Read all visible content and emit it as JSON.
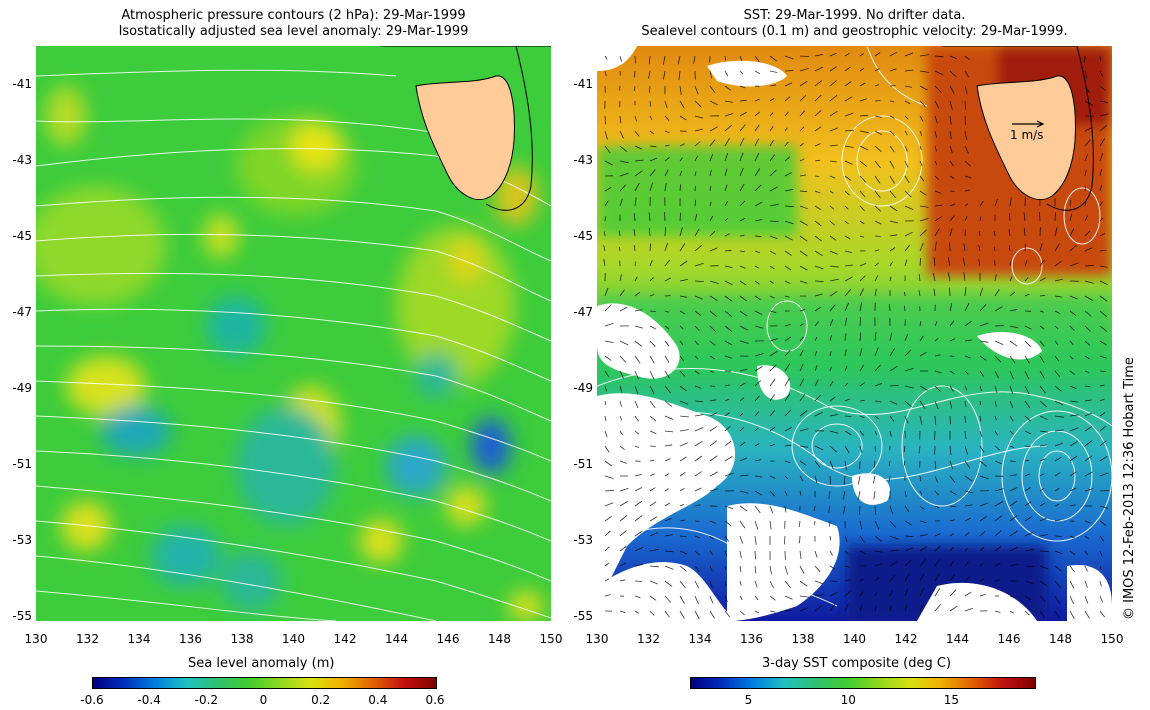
{
  "left_map": {
    "title_line1": "Atmospheric pressure contours (2 hPa): 29-Mar-1999",
    "title_line2": "Isostatically adjusted sea level anomaly: 29-Mar-1999",
    "colorbar_label": "Sea level anomaly (m)",
    "colorbar_ticks": [
      "-0.6",
      "-0.4",
      "-0.2",
      "0",
      "0.2",
      "0.4",
      "0.6"
    ],
    "colors": {
      "ocean": "#2ecc2e",
      "land": "#ffcc99",
      "contour": "#ffffff"
    }
  },
  "right_map": {
    "title_line1": "SST: 29-Mar-1999. No drifter data.",
    "title_line2": "Sealevel contours (0.1 m) and geostrophic velocity: 29-Mar-1999.",
    "velocity_scale_label": "1 m/s",
    "colorbar_label": "3-day SST composite (deg C)",
    "colorbar_ticks": [
      "5",
      "10",
      "15"
    ],
    "colors": {
      "land": "#ffcc99",
      "contour": "#ffffff"
    }
  },
  "axes": {
    "lat_ticks": [
      "-41",
      "-43",
      "-45",
      "-47",
      "-49",
      "-51",
      "-53",
      "-55"
    ],
    "lon_ticks": [
      "130",
      "132",
      "134",
      "136",
      "138",
      "140",
      "142",
      "144",
      "146",
      "148",
      "150"
    ]
  },
  "credit": "© IMOS 12-Feb-2013 12:36 Hobart Time"
}
